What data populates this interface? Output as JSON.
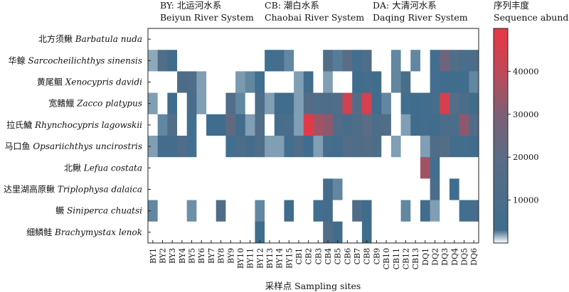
{
  "chart_data": {
    "type": "heatmap",
    "systems": [
      {
        "cn": "BY: 北运河水系",
        "en": "Beiyun River System"
      },
      {
        "cn": "CB: 潮白水系",
        "en": "Chaobai River System"
      },
      {
        "cn": "DA: 大清河水系",
        "en": "Daqing River System"
      }
    ],
    "xlabel": "采样点 Sampling sites",
    "sites": [
      "BY1",
      "BY2",
      "BY3",
      "BY4",
      "BY5",
      "BY6",
      "BY7",
      "BY8",
      "BY9",
      "BY10",
      "BY11",
      "BY12",
      "BY13",
      "BY14",
      "BY15",
      "CB1",
      "CB2",
      "CB3",
      "CB4",
      "CB5",
      "CB6",
      "CB7",
      "CB8",
      "CB9",
      "CB10",
      "CB11",
      "CB12",
      "CB13",
      "DQ1",
      "DQ2",
      "DQ3",
      "DQ4",
      "DQ5",
      "DQ6"
    ],
    "species": [
      {
        "cn": "北方须鳅",
        "latin": "Barbatula nuda"
      },
      {
        "cn": "华鳈",
        "latin": "Sarcocheilichthys sinensis"
      },
      {
        "cn": "黄尾鲴",
        "latin": "Xenocypris davidi"
      },
      {
        "cn": "宽鳍鱲",
        "latin": "Zacco platypus"
      },
      {
        "cn": "拉氏鱥",
        "latin": "Rhynchocypris lagowskii"
      },
      {
        "cn": "马口鱼",
        "latin": "Opsariichthys uncirostris"
      },
      {
        "cn": "北鳅",
        "latin": "Lefua costata"
      },
      {
        "cn": "达里湖高原鳅",
        "latin": "Triplophysa dalaica"
      },
      {
        "cn": "鳜",
        "latin": "Siniperca chuatsi"
      },
      {
        "cn": "细鳞鲑",
        "latin": "Brachymystax lenok"
      }
    ],
    "values": [
      [
        0,
        0,
        0,
        0,
        0,
        0,
        0,
        0,
        0,
        0,
        0,
        0,
        0,
        0,
        0,
        0,
        0,
        0,
        0,
        0,
        0,
        0,
        0,
        0,
        0,
        0,
        0,
        0,
        0,
        0,
        0,
        0,
        0,
        0
      ],
      [
        300,
        13000,
        2000,
        0,
        0,
        0,
        0,
        0,
        0,
        0,
        0,
        0,
        1500,
        6000,
        1000,
        0,
        0,
        0,
        13000,
        1200,
        19000,
        1500,
        11000,
        0,
        0,
        1000,
        0,
        1000,
        0,
        1500,
        25000,
        14000,
        8000,
        10000
      ],
      [
        0,
        0,
        0,
        10000,
        12000,
        500,
        0,
        0,
        0,
        600,
        1000,
        1500,
        0,
        0,
        0,
        500,
        4000,
        0,
        500,
        0,
        0,
        2000,
        5000,
        3000,
        0,
        1000,
        9000,
        0,
        0,
        1500,
        2000,
        3000,
        2500,
        1000
      ],
      [
        500,
        0,
        2000,
        0,
        7000,
        500,
        0,
        0,
        13000,
        1000,
        0,
        11000,
        500,
        3000,
        2000,
        500,
        15000,
        11000,
        11000,
        13000,
        43000,
        15000,
        45000,
        2000,
        1000,
        0,
        1500,
        2500,
        4000,
        6000,
        45000,
        16000,
        10000,
        3000
      ],
      [
        0,
        1000,
        13000,
        0,
        1500,
        0,
        2000,
        2500,
        21000,
        3500,
        500,
        13000,
        0,
        6000,
        9000,
        500,
        48000,
        35000,
        32000,
        12000,
        7000,
        11000,
        19000,
        11000,
        14000,
        0,
        500,
        2000,
        5000,
        2000,
        9000,
        9000,
        32000,
        12000
      ],
      [
        500,
        5000,
        4000,
        12000,
        1500,
        0,
        0,
        0,
        1500,
        10000,
        5000,
        11000,
        500,
        500,
        1500,
        12000,
        2000,
        500,
        6000,
        4000,
        13000,
        12000,
        15000,
        11000,
        0,
        500,
        0,
        0,
        500,
        12000,
        15000,
        5000,
        4000,
        2000
      ],
      [
        0,
        0,
        0,
        0,
        0,
        0,
        0,
        0,
        0,
        0,
        0,
        0,
        0,
        0,
        0,
        0,
        0,
        0,
        0,
        0,
        0,
        0,
        0,
        0,
        0,
        0,
        0,
        0,
        35000,
        1500,
        0,
        0,
        0,
        0
      ],
      [
        0,
        0,
        0,
        0,
        0,
        0,
        0,
        0,
        0,
        0,
        0,
        0,
        0,
        0,
        0,
        0,
        0,
        0,
        6000,
        1000,
        0,
        0,
        0,
        0,
        0,
        0,
        0,
        0,
        0,
        10000,
        0,
        2000,
        0,
        0
      ],
      [
        1000,
        0,
        0,
        0,
        800,
        0,
        0,
        12000,
        0,
        0,
        0,
        1000,
        0,
        0,
        3000,
        0,
        0,
        1500,
        5000,
        0,
        0,
        12000,
        2500,
        0,
        0,
        0,
        1000,
        0,
        4000,
        500,
        0,
        0,
        1500,
        6000
      ],
      [
        0,
        0,
        0,
        0,
        0,
        0,
        0,
        0,
        0,
        0,
        0,
        3000,
        0,
        0,
        0,
        0,
        0,
        0,
        13000,
        2000,
        0,
        0,
        3000,
        0,
        0,
        0,
        0,
        0,
        0,
        0,
        0,
        0,
        0,
        0
      ]
    ],
    "colorbar": {
      "label_cn": "序列丰度",
      "label_en": "Sequence abundance",
      "ticks": [
        10000,
        20000,
        30000,
        40000
      ],
      "range": [
        0,
        50000
      ],
      "colors": [
        "#ffffff",
        "#3f6d8d",
        "#5a6d85",
        "#7d5f75",
        "#c04858",
        "#e83744"
      ]
    }
  }
}
